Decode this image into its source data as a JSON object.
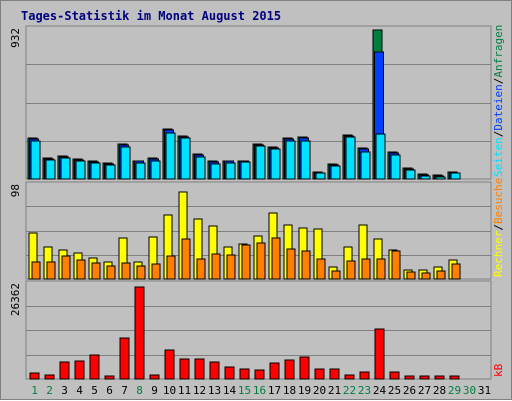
{
  "chart_data": {
    "type": "bar",
    "title": "Tages-Statistik im Monat August 2015",
    "categories": [
      "1",
      "2",
      "3",
      "4",
      "5",
      "6",
      "7",
      "8",
      "9",
      "10",
      "11",
      "12",
      "13",
      "14",
      "15",
      "16",
      "17",
      "18",
      "19",
      "20",
      "21",
      "22",
      "23",
      "24",
      "25",
      "26",
      "27",
      "28",
      "29",
      "30",
      "31"
    ],
    "weekend_days": [
      "1",
      "2",
      "8",
      "15",
      "16",
      "22",
      "23",
      "29",
      "30"
    ],
    "panels": [
      {
        "id": "requests",
        "ymax_label": "932",
        "ymax": 932,
        "right_label_parts": [
          {
            "text": "Anfragen",
            "color": "#008040"
          },
          {
            "text": "/",
            "color": "#000000"
          },
          {
            "text": "Dateien",
            "color": "#0040ff"
          },
          {
            "text": "/",
            "color": "#000000"
          },
          {
            "text": "Seiten",
            "color": "#00e0ff"
          }
        ],
        "series": [
          {
            "name": "Anfragen",
            "color": "#008040",
            "values": [
              255,
              130,
              145,
              125,
              110,
              100,
              220,
              115,
              130,
              310,
              270,
              155,
              110,
              115,
              115,
              220,
              200,
              255,
              260,
              45,
              95,
              275,
              195,
              932,
              170,
              70,
              30,
              25,
              45,
              0,
              0
            ]
          },
          {
            "name": "Dateien",
            "color": "#0040ff",
            "values": [
              250,
              125,
              140,
              120,
              105,
              95,
              215,
              110,
              125,
              305,
              265,
              150,
              105,
              110,
              110,
              215,
              195,
              250,
              255,
              40,
              90,
              270,
              190,
              795,
              165,
              65,
              25,
              20,
              40,
              0,
              0
            ]
          },
          {
            "name": "Seiten",
            "color": "#00e0ff",
            "values": [
              240,
              120,
              130,
              115,
              100,
              90,
              200,
              100,
              110,
              290,
              255,
              140,
              95,
              100,
              105,
              205,
              185,
              240,
              240,
              35,
              80,
              265,
              170,
              280,
              150,
              55,
              20,
              15,
              35,
              0,
              0
            ]
          }
        ]
      },
      {
        "id": "visits",
        "ymax_label": "98",
        "ymax": 98,
        "right_label_parts": [
          {
            "text": "Besuche",
            "color": "#ff8000"
          },
          {
            "text": "/",
            "color": "#000000"
          },
          {
            "text": "Rechner",
            "color": "#ffff00"
          }
        ],
        "series": [
          {
            "name": "Rechner",
            "color": "#ffff00",
            "values": [
              48,
              34,
              31,
              27,
              22,
              18,
              43,
              18,
              44,
              67,
              92,
              63,
              56,
              34,
              37,
              45,
              70,
              57,
              54,
              53,
              13,
              34,
              57,
              42,
              31,
              10,
              10,
              13,
              20,
              0,
              0
            ]
          },
          {
            "name": "Besuche",
            "color": "#ff8000",
            "values": [
              18,
              18,
              24,
              20,
              17,
              14,
              17,
              14,
              16,
              24,
              42,
              21,
              26,
              25,
              36,
              38,
              43,
              32,
              29,
              21,
              8,
              19,
              21,
              21,
              29,
              7,
              6,
              8,
              16,
              0,
              0
            ]
          }
        ]
      },
      {
        "id": "kb",
        "ymax_label": "26362",
        "ymax": 26362,
        "right_label_parts": [
          {
            "text": "kB",
            "color": "#ff0000"
          }
        ],
        "series": [
          {
            "name": "kB",
            "color": "#ff0000",
            "values": [
              1750,
              1200,
              4800,
              5000,
              6600,
              900,
              11400,
              25900,
              1000,
              8000,
              5500,
              5700,
              4800,
              3400,
              2800,
              2600,
              4600,
              5200,
              6300,
              2800,
              2800,
              1000,
              2100,
              13900,
              2000,
              800,
              800,
              800,
              800,
              0,
              0
            ]
          }
        ]
      }
    ]
  }
}
